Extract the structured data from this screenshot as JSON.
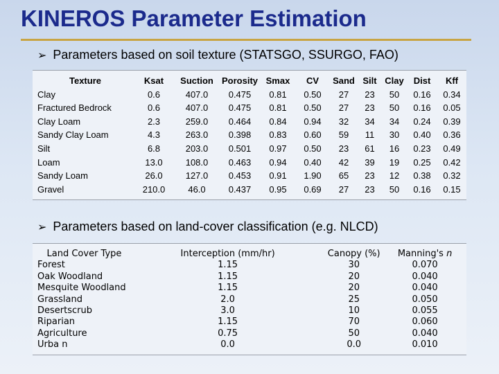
{
  "title": "KINEROS Parameter Estimation",
  "colors": {
    "title": "#1b2a8c",
    "rule": "#c8a443"
  },
  "bullet_icon": "arrow-bullet-icon",
  "soil": {
    "heading": "Parameters based on soil texture (STATSGO, SSURGO, FAO)",
    "columns": [
      "Texture",
      "Ksat",
      "Suction",
      "Porosity",
      "Smax",
      "CV",
      "Sand",
      "Silt",
      "Clay",
      "Dist",
      "Kff"
    ],
    "rows": [
      [
        "Clay",
        "0.6",
        "407.0",
        "0.475",
        "0.81",
        "0.50",
        "27",
        "23",
        "50",
        "0.16",
        "0.34"
      ],
      [
        "Fractured Bedrock",
        "0.6",
        "407.0",
        "0.475",
        "0.81",
        "0.50",
        "27",
        "23",
        "50",
        "0.16",
        "0.05"
      ],
      [
        "Clay Loam",
        "2.3",
        "259.0",
        "0.464",
        "0.84",
        "0.94",
        "32",
        "34",
        "34",
        "0.24",
        "0.39"
      ],
      [
        "Sandy Clay Loam",
        "4.3",
        "263.0",
        "0.398",
        "0.83",
        "0.60",
        "59",
        "11",
        "30",
        "0.40",
        "0.36"
      ],
      [
        "Silt",
        "6.8",
        "203.0",
        "0.501",
        "0.97",
        "0.50",
        "23",
        "61",
        "16",
        "0.23",
        "0.49"
      ],
      [
        "Loam",
        "13.0",
        "108.0",
        "0.463",
        "0.94",
        "0.40",
        "42",
        "39",
        "19",
        "0.25",
        "0.42"
      ],
      [
        "Sandy Loam",
        "26.0",
        "127.0",
        "0.453",
        "0.91",
        "1.90",
        "65",
        "23",
        "12",
        "0.38",
        "0.32"
      ],
      [
        "Gravel",
        "210.0",
        "46.0",
        "0.437",
        "0.95",
        "0.69",
        "27",
        "23",
        "50",
        "0.16",
        "0.15"
      ]
    ]
  },
  "landcover": {
    "heading": "Parameters based on land-cover classification (e.g. NLCD)",
    "columns": [
      "Land Cover Type",
      "Interception (mm/hr)",
      "Canopy (%)",
      "Manning's "
    ],
    "manning_italic": "n",
    "rows": [
      [
        "Forest",
        "1.15",
        "30",
        "0.070"
      ],
      [
        "Oak Woodland",
        "1.15",
        "20",
        "0.040"
      ],
      [
        "Mesquite Woodland",
        "1.15",
        "20",
        "0.040"
      ],
      [
        "Grassland",
        "2.0",
        "25",
        "0.050"
      ],
      [
        "Desertscrub",
        "3.0",
        "10",
        "0.055"
      ],
      [
        "Riparian",
        "1.15",
        "70",
        "0.060"
      ],
      [
        "Agriculture",
        "0.75",
        "50",
        "0.040"
      ],
      [
        "Urba n",
        "0.0",
        "0.0",
        "0.010"
      ]
    ]
  }
}
